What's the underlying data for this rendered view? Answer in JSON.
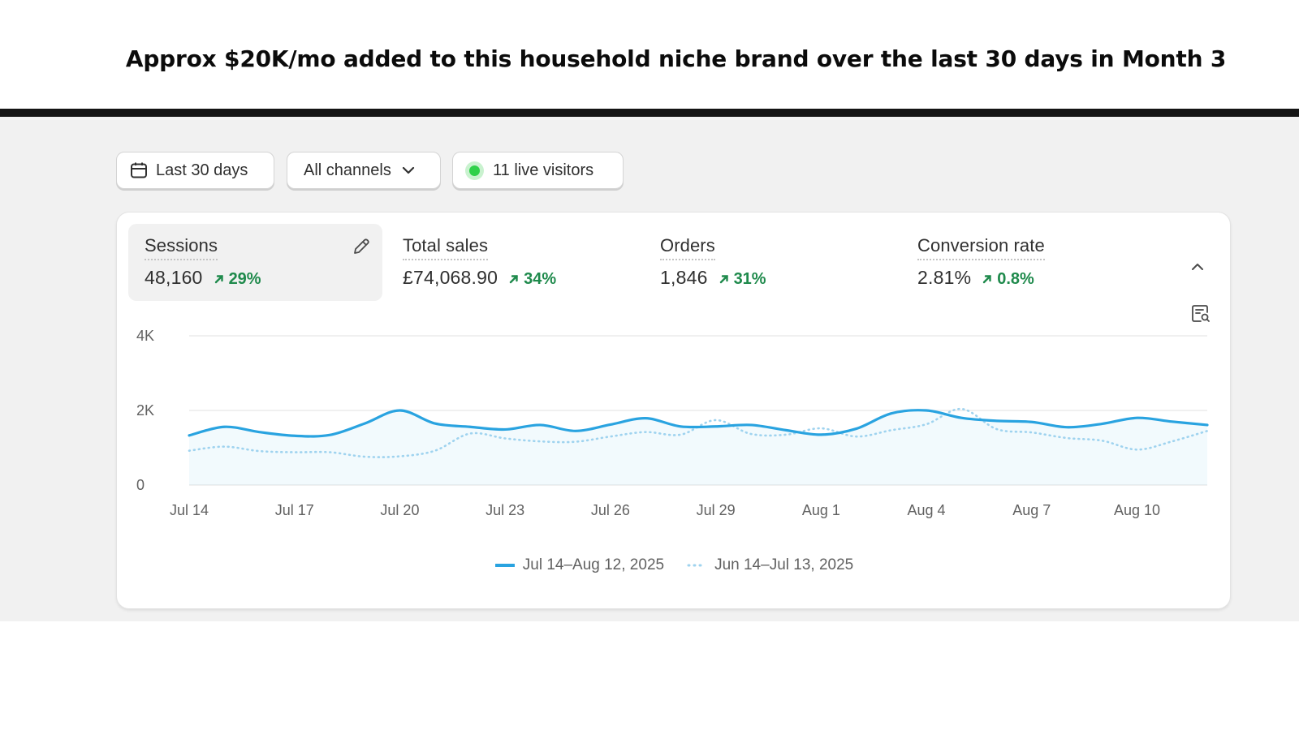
{
  "headline": "Approx $20K/mo added to this household niche brand over the last 30 days in Month 3",
  "toolbar": {
    "date_range": "Last 30 days",
    "channels": "All channels",
    "live_visitors": "11 live visitors"
  },
  "metrics": [
    {
      "title": "Sessions",
      "value": "48,160",
      "change": "29%"
    },
    {
      "title": "Total sales",
      "value": "£74,068.90",
      "change": "34%"
    },
    {
      "title": "Orders",
      "value": "1,846",
      "change": "31%"
    },
    {
      "title": "Conversion rate",
      "value": "2.81%",
      "change": "0.8%"
    }
  ],
  "colors": {
    "series_current": "#29a3e0",
    "series_previous": "#9fd3ef",
    "positive_change": "#1f8a4c",
    "live_dot": "#2fd14a"
  },
  "chart_data": {
    "type": "line",
    "y_ticks": [
      "4K",
      "2K",
      "0"
    ],
    "ylim": [
      0,
      4000
    ],
    "x_ticks": [
      "Jul 14",
      "Jul 17",
      "Jul 20",
      "Jul 23",
      "Jul 26",
      "Jul 29",
      "Aug 1",
      "Aug 4",
      "Aug 7",
      "Aug 10"
    ],
    "grid": true,
    "legend": "bottom-center",
    "series": [
      {
        "name": "Jul 14–Aug 12, 2025",
        "style": "solid",
        "x": [
          "Jul 14",
          "Jul 15",
          "Jul 16",
          "Jul 17",
          "Jul 18",
          "Jul 19",
          "Jul 20",
          "Jul 21",
          "Jul 22",
          "Jul 23",
          "Jul 24",
          "Jul 25",
          "Jul 26",
          "Jul 27",
          "Jul 28",
          "Jul 29",
          "Jul 30",
          "Jul 31",
          "Aug 1",
          "Aug 2",
          "Aug 3",
          "Aug 4",
          "Aug 5",
          "Aug 6",
          "Aug 7",
          "Aug 8",
          "Aug 9",
          "Aug 10",
          "Aug 11",
          "Aug 12"
        ],
        "values": [
          1330,
          1560,
          1420,
          1320,
          1340,
          1650,
          2000,
          1650,
          1560,
          1490,
          1610,
          1450,
          1620,
          1790,
          1570,
          1570,
          1610,
          1470,
          1350,
          1510,
          1920,
          2000,
          1800,
          1720,
          1690,
          1550,
          1640,
          1800,
          1700,
          1610
        ]
      },
      {
        "name": "Jun 14–Jul 13, 2025",
        "style": "dotted",
        "x": [
          "Jun 14",
          "Jun 15",
          "Jun 16",
          "Jun 17",
          "Jun 18",
          "Jun 19",
          "Jun 20",
          "Jun 21",
          "Jun 22",
          "Jun 23",
          "Jun 24",
          "Jun 25",
          "Jun 26",
          "Jun 27",
          "Jun 28",
          "Jun 29",
          "Jun 30",
          "Jul 1",
          "Jul 2",
          "Jul 3",
          "Jul 4",
          "Jul 5",
          "Jul 6",
          "Jul 7",
          "Jul 8",
          "Jul 9",
          "Jul 10",
          "Jul 11",
          "Jul 12",
          "Jul 13"
        ],
        "values": [
          920,
          1030,
          910,
          880,
          880,
          760,
          770,
          920,
          1380,
          1250,
          1170,
          1160,
          1300,
          1420,
          1350,
          1740,
          1370,
          1350,
          1520,
          1300,
          1470,
          1630,
          2040,
          1500,
          1410,
          1260,
          1190,
          950,
          1170,
          1450
        ]
      }
    ]
  }
}
